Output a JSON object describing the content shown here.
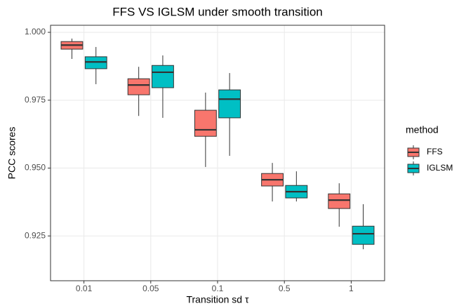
{
  "chart_data": {
    "type": "boxplot",
    "title": "FFS VS IGLSM under smooth transition",
    "x_label": "Transition sd τ",
    "y_label": "PCC scores",
    "legend_title": "method",
    "categories": [
      "0.01",
      "0.05",
      "0.1",
      "0.5",
      "1"
    ],
    "ylim": [
      0.9085,
      1.0026
    ],
    "yticks": [
      {
        "value": 1,
        "label": "1.000"
      },
      0.975,
      {
        "value": 0.95,
        "label": "0.950"
      },
      0.925
    ],
    "grid": true,
    "series": [
      {
        "name": "FFS",
        "color": "#f8766d",
        "low": [
          0.9902,
          0.9692,
          0.9504,
          0.9377,
          0.9284
        ],
        "q1": [
          0.9938,
          0.977,
          0.9617,
          0.9434,
          0.9351
        ],
        "median": [
          0.9953,
          0.9806,
          0.9641,
          0.9457,
          0.9382
        ],
        "q3": [
          0.9966,
          0.9829,
          0.9713,
          0.948,
          0.9405
        ],
        "high": [
          0.9977,
          0.9873,
          0.9778,
          0.9519,
          0.9444
        ]
      },
      {
        "name": "IGLSM",
        "color": "#00bfc4",
        "low": [
          0.9809,
          0.9685,
          0.9545,
          0.9377,
          0.9201
        ],
        "q1": [
          0.9866,
          0.9796,
          0.9685,
          0.939,
          0.9219
        ],
        "median": [
          0.9891,
          0.9853,
          0.9754,
          0.9413,
          0.9258
        ],
        "q3": [
          0.991,
          0.9878,
          0.9788,
          0.9436,
          0.9286
        ],
        "high": [
          0.9946,
          0.9915,
          0.985,
          0.9488,
          0.9367
        ]
      }
    ]
  }
}
